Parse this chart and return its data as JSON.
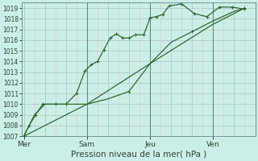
{
  "background_color": "#cceee8",
  "plot_bg_color": "#cceee8",
  "grid_color_major": "#bbcccc",
  "grid_color_minor": "#ddeedd",
  "line_color": "#2d6b2d",
  "xlabel": "Pression niveau de la mer( hPa )",
  "ylim": [
    1007,
    1019.5
  ],
  "yticks": [
    1007,
    1008,
    1009,
    1010,
    1011,
    1012,
    1013,
    1014,
    1015,
    1016,
    1017,
    1018,
    1019
  ],
  "day_labels": [
    "Mer",
    "Sam",
    "Jeu",
    "Ven"
  ],
  "day_positions": [
    0,
    3.0,
    6.0,
    9.0
  ],
  "xlim": [
    -0.1,
    11.0
  ],
  "series1_x": [
    0.0,
    0.25,
    0.55,
    0.9,
    1.5,
    2.0,
    2.5,
    2.9,
    3.2,
    3.5,
    3.8,
    4.1,
    4.4,
    4.7,
    5.0,
    5.3,
    5.7,
    6.0,
    6.3,
    6.6,
    6.9,
    7.5,
    8.1,
    8.7,
    9.3,
    9.9,
    10.5
  ],
  "series1_y": [
    1007.0,
    1008.0,
    1009.0,
    1010.0,
    1010.0,
    1010.0,
    1011.0,
    1013.1,
    1013.7,
    1014.0,
    1015.1,
    1016.2,
    1016.6,
    1016.2,
    1016.2,
    1016.5,
    1016.5,
    1018.1,
    1018.2,
    1018.4,
    1019.2,
    1019.4,
    1018.5,
    1018.2,
    1019.1,
    1019.1,
    1018.9
  ],
  "series2_x": [
    0.0,
    0.5,
    1.0,
    2.0,
    3.0,
    4.0,
    5.0,
    6.0,
    7.0,
    8.0,
    9.0,
    10.0,
    10.5
  ],
  "series2_y": [
    1007.0,
    1009.0,
    1010.0,
    1010.0,
    1010.0,
    1010.5,
    1011.2,
    1013.8,
    1015.8,
    1016.8,
    1017.8,
    1018.7,
    1019.0
  ],
  "series3_x": [
    0.0,
    3.0,
    6.0,
    9.0,
    10.5
  ],
  "series3_y": [
    1007.0,
    1010.0,
    1013.8,
    1017.5,
    1019.0
  ],
  "vline_positions": [
    3.0,
    6.0,
    9.0
  ],
  "xtick_positions": [
    0,
    3.0,
    6.0,
    9.0
  ]
}
